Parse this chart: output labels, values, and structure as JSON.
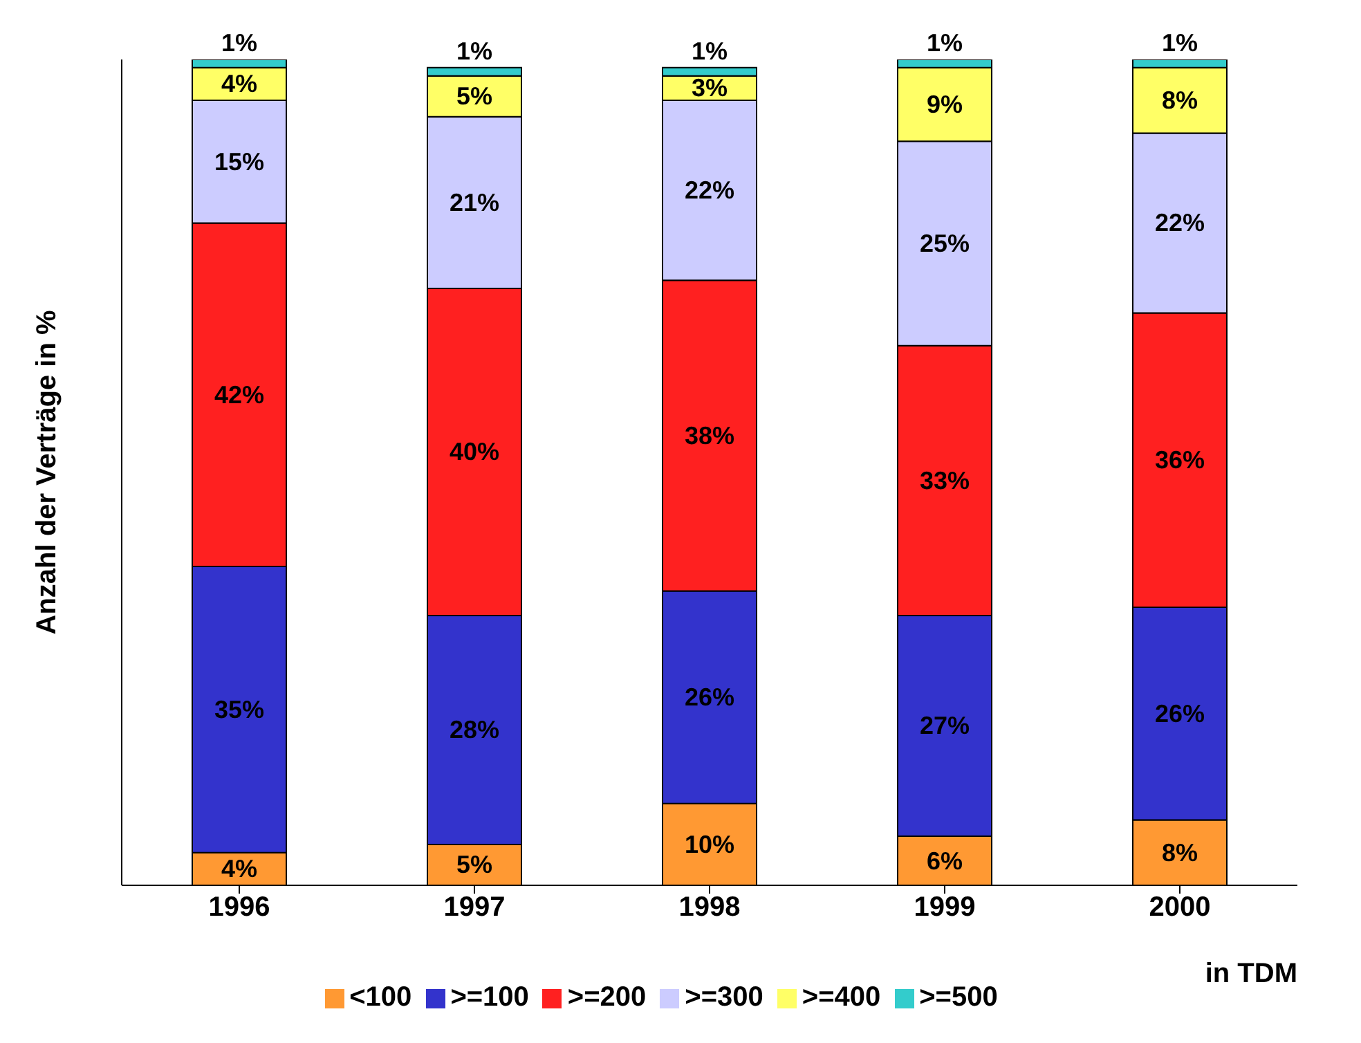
{
  "chart_data": {
    "type": "bar",
    "stacked": true,
    "ylabel": "Anzahl der Verträge in %",
    "xlabel": "in TDM",
    "categories": [
      "1996",
      "1997",
      "1998",
      "1999",
      "2000"
    ],
    "series": [
      {
        "name": "<100",
        "color": "#ff9933",
        "values": [
          4,
          5,
          10,
          6,
          8
        ],
        "value_labels": [
          "4%",
          "5%",
          "10%",
          "6%",
          "8%"
        ]
      },
      {
        "name": ">=100",
        "color": "#3333cc",
        "values": [
          35,
          28,
          26,
          27,
          26
        ],
        "value_labels": [
          "35%",
          "28%",
          "26%",
          "27%",
          "26%"
        ]
      },
      {
        "name": ">=200",
        "color": "#ff2020",
        "values": [
          42,
          40,
          38,
          33,
          36
        ],
        "value_labels": [
          "42%",
          "40%",
          "38%",
          "33%",
          "36%"
        ]
      },
      {
        "name": ">=300",
        "color": "#ccccff",
        "values": [
          15,
          21,
          22,
          25,
          22
        ],
        "value_labels": [
          "15%",
          "21%",
          "22%",
          "25%",
          "22%"
        ]
      },
      {
        "name": ">=400",
        "color": "#ffff66",
        "values": [
          4,
          5,
          3,
          9,
          8
        ],
        "value_labels": [
          "4%",
          "5%",
          "3%",
          "9%",
          "8%"
        ]
      },
      {
        "name": ">=500",
        "color": "#33cccc",
        "values": [
          1,
          1,
          1,
          1,
          1
        ],
        "value_labels": [
          "1%",
          "1%",
          "1%",
          "1%",
          "1%"
        ]
      }
    ],
    "tick_labels": "x",
    "legend": "bottom"
  }
}
